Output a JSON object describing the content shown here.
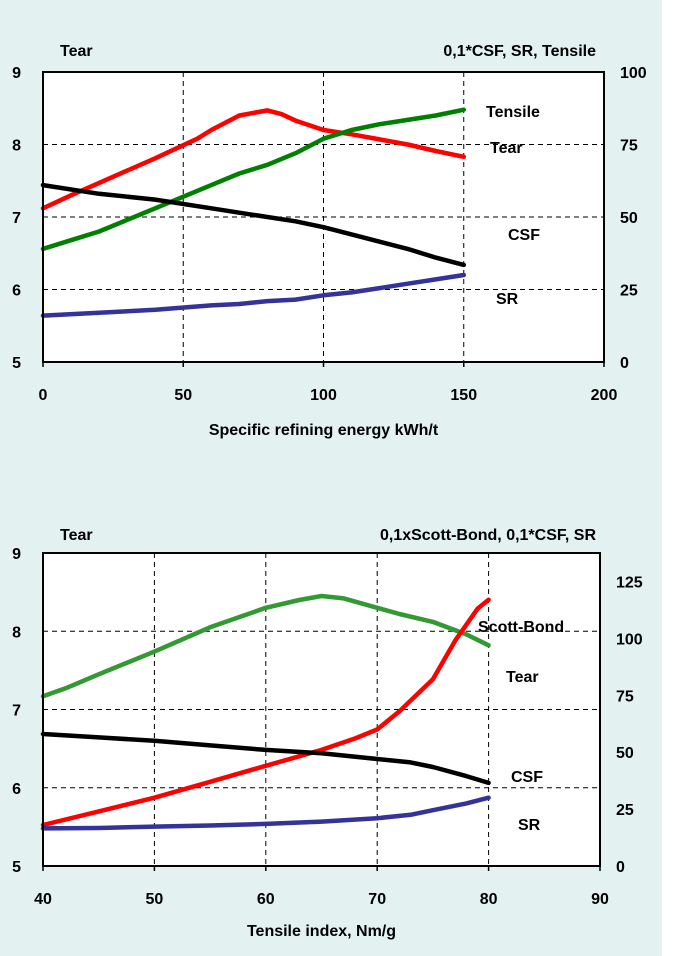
{
  "chart_data": [
    {
      "type": "line",
      "xlabel": "Specific refining energy kWh/t",
      "left_label": "Tear",
      "right_label": "0,1*CSF, SR, Tensile",
      "xlim": [
        0,
        200
      ],
      "xticks": [
        "0",
        "50",
        "100",
        "150",
        "200"
      ],
      "y_left_lim": [
        5,
        9
      ],
      "y_left_ticks": [
        "5",
        "6",
        "7",
        "8",
        "9"
      ],
      "y_right_lim": [
        0,
        100
      ],
      "y_right_ticks": [
        "0",
        "25",
        "50",
        "75",
        "100"
      ],
      "grid": true,
      "series": [
        {
          "name": "Tear",
          "color": "#ff0000",
          "axis": "left",
          "x": [
            0,
            10,
            20,
            30,
            40,
            50,
            55,
            60,
            70,
            80,
            85,
            90,
            100,
            110,
            120,
            130,
            140,
            150
          ],
          "y": [
            7.12,
            7.3,
            7.47,
            7.64,
            7.81,
            7.99,
            8.08,
            8.2,
            8.4,
            8.47,
            8.42,
            8.33,
            8.2,
            8.14,
            8.07,
            8.0,
            7.91,
            7.83
          ]
        },
        {
          "name": "Tensile",
          "color": "#008000",
          "axis": "right",
          "x": [
            0,
            10,
            20,
            30,
            40,
            50,
            60,
            70,
            80,
            90,
            100,
            110,
            120,
            130,
            140,
            150
          ],
          "y": [
            39,
            42,
            45,
            49,
            53,
            57,
            61,
            65,
            68,
            72,
            77,
            80,
            82,
            83.5,
            85,
            87
          ]
        },
        {
          "name": "CSF",
          "color": "#000000",
          "axis": "right",
          "x": [
            0,
            20,
            40,
            60,
            70,
            80,
            90,
            100,
            110,
            120,
            130,
            140,
            150
          ],
          "y": [
            61,
            58,
            56,
            53,
            51.5,
            50,
            48.5,
            46.5,
            44,
            41.5,
            39,
            36,
            33.5
          ]
        },
        {
          "name": "SR",
          "color": "#333399",
          "axis": "right",
          "x": [
            0,
            20,
            40,
            60,
            70,
            80,
            90,
            100,
            110,
            120,
            130,
            140,
            150
          ],
          "y": [
            16,
            17,
            18,
            19.5,
            20,
            21,
            21.5,
            23,
            24,
            25.5,
            27,
            28.5,
            30
          ]
        }
      ],
      "annotations": [
        {
          "text": "Tensile",
          "color": "#008000"
        },
        {
          "text": "Tear",
          "color": "#ff0000"
        },
        {
          "text": "CSF",
          "color": "#000000"
        },
        {
          "text": "SR",
          "color": "#333399"
        }
      ]
    },
    {
      "type": "line",
      "xlabel": "Tensile index, Nm/g",
      "left_label": "Tear",
      "right_label": "0,1xScott-Bond, 0,1*CSF, SR",
      "xlim": [
        40,
        90
      ],
      "xticks": [
        "40",
        "50",
        "60",
        "70",
        "80",
        "90"
      ],
      "y_left_lim": [
        5,
        9
      ],
      "y_left_ticks": [
        "5",
        "6",
        "7",
        "8",
        "9"
      ],
      "y_right_lim": [
        0,
        137.5
      ],
      "y_right_ticks": [
        "0",
        "25",
        "50",
        "75",
        "100",
        "125"
      ],
      "grid": true,
      "series": [
        {
          "name": "Tear",
          "color": "#339933",
          "axis": "left",
          "x": [
            40,
            42,
            45,
            50,
            55,
            60,
            63,
            65,
            67,
            70,
            72,
            75,
            78,
            80
          ],
          "y": [
            7.17,
            7.27,
            7.45,
            7.74,
            8.05,
            8.3,
            8.4,
            8.45,
            8.42,
            8.3,
            8.22,
            8.12,
            7.96,
            7.82
          ]
        },
        {
          "name": "Scott-Bond",
          "color": "#ff0000",
          "axis": "right",
          "x": [
            40,
            45,
            50,
            55,
            60,
            65,
            68,
            70,
            72,
            75,
            77,
            79,
            80
          ],
          "y": [
            18,
            24,
            30,
            37,
            44,
            51,
            56,
            60,
            68,
            82,
            99,
            113,
            117
          ]
        },
        {
          "name": "CSF",
          "color": "#000000",
          "axis": "right",
          "x": [
            40,
            45,
            50,
            55,
            60,
            65,
            70,
            73,
            75,
            78,
            80
          ],
          "y": [
            58,
            56.5,
            55,
            53,
            51,
            49.5,
            47,
            45.5,
            43.5,
            39.5,
            36.5
          ]
        },
        {
          "name": "SR",
          "color": "#333399",
          "axis": "right",
          "x": [
            40,
            45,
            50,
            55,
            60,
            65,
            70,
            73,
            75,
            78,
            80
          ],
          "y": [
            16.5,
            16.7,
            17.3,
            17.8,
            18.5,
            19.5,
            21,
            22.5,
            24.5,
            27.5,
            30
          ]
        }
      ],
      "annotations": [
        {
          "text": "Scott-Bond",
          "color": "#ff0000"
        },
        {
          "text": "Tear",
          "color": "#339933"
        },
        {
          "text": "CSF",
          "color": "#000000"
        },
        {
          "text": "SR",
          "color": "#333399"
        }
      ]
    }
  ]
}
